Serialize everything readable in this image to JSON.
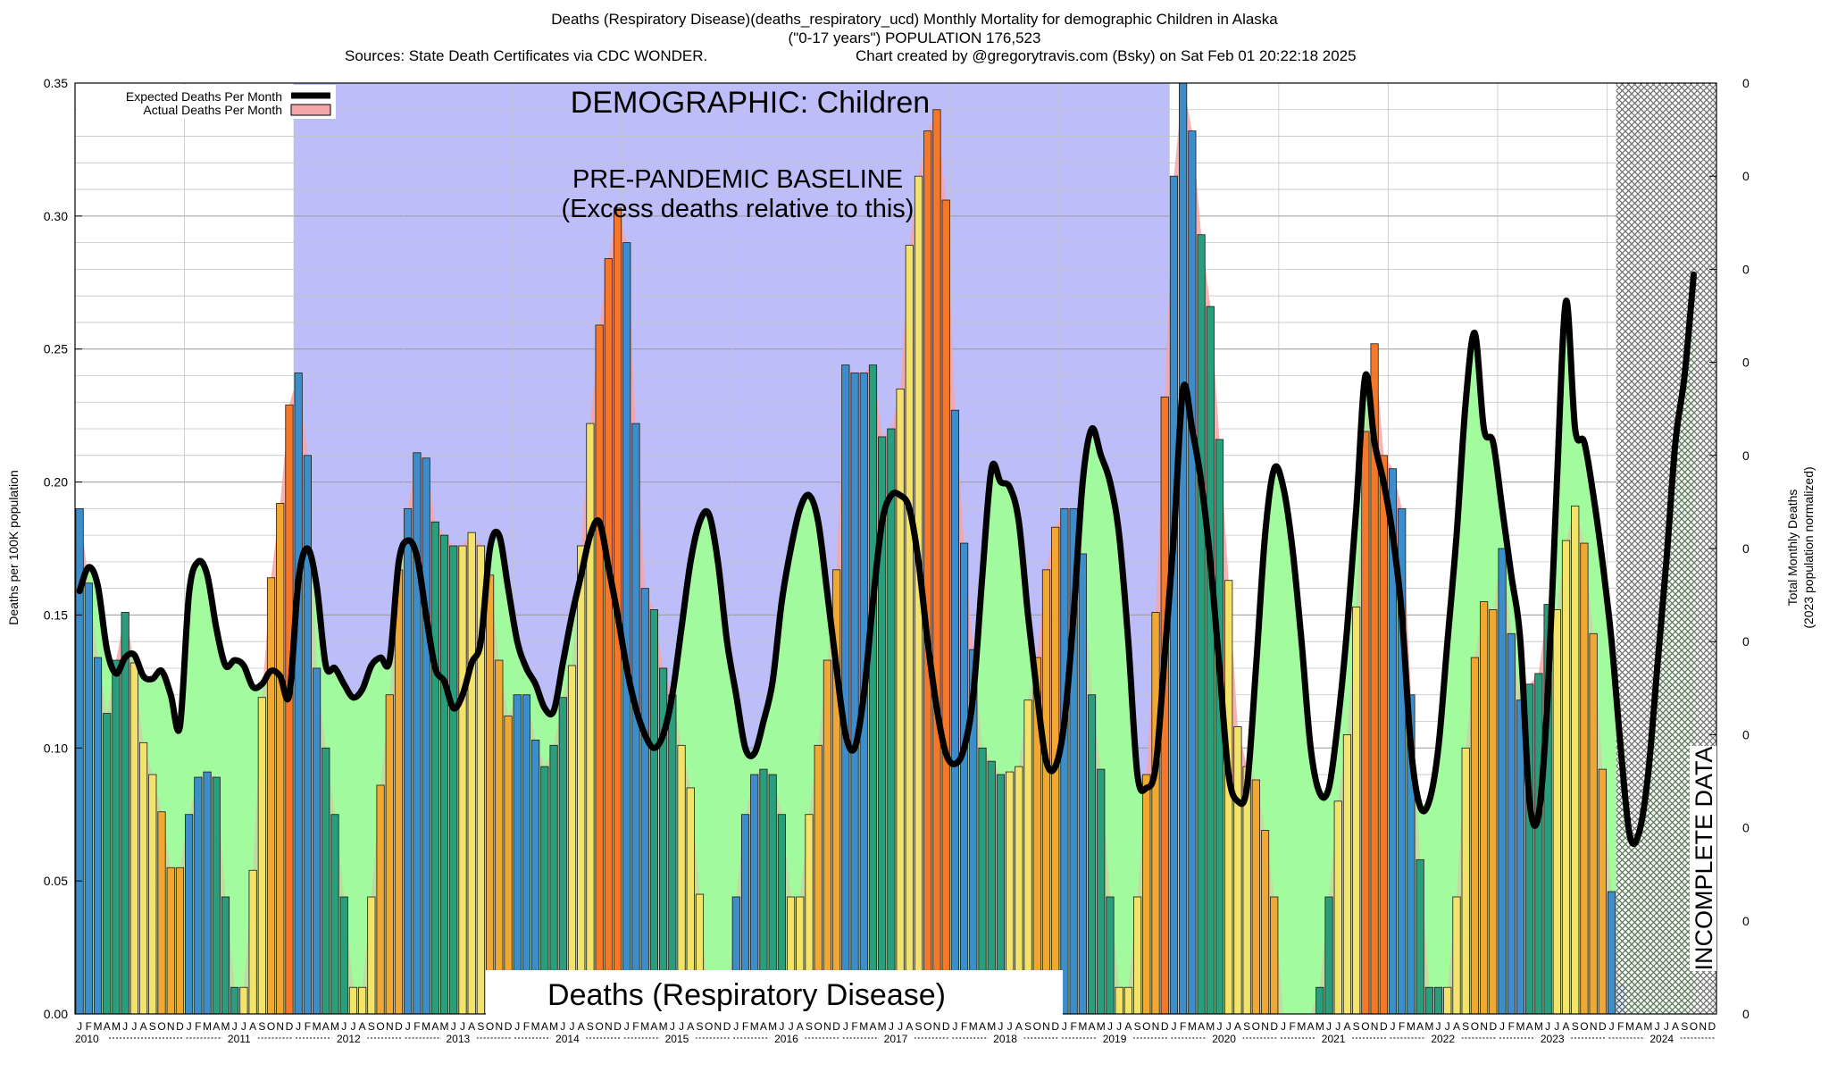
{
  "header": {
    "title_line1": "Deaths (Respiratory Disease)(deaths_respiratory_ucd) Monthly Mortality for demographic Children in Alaska",
    "title_line2": "(\"0-17 years\") POPULATION 176,523",
    "sources": "Sources: State Death Certificates via CDC WONDER.",
    "credit": "Chart created by @gregorytravis.com (Bsky) on Sat Feb 01 20:22:18 2025"
  },
  "colors": {
    "baseline_band": "#bdbdfa",
    "excess_fill": "#a0fc9c",
    "expected_line": "#000000",
    "actual_fill": "#f4a6a6",
    "bar_winter": "#3c8dc9",
    "bar_spring": "#2a9d7c",
    "bar_summer": "#f3e36b",
    "bar_fall": "#f0a832",
    "bar_peak": "#f5782a",
    "hatch": "#555555"
  },
  "chart_data": {
    "type": "bar",
    "title": "Deaths (Respiratory Disease)(deaths_respiratory_ucd) Monthly Mortality for demographic Children in Alaska",
    "ylabel_left": "Deaths per 100K population",
    "ylabel_right_line1": "Total Monthly Deaths",
    "ylabel_right_line2": "(2023 population normalized)",
    "ylim": [
      0,
      0.35
    ],
    "y_ticks": [
      "0.00",
      "0.05",
      "0.10",
      "0.15",
      "0.20",
      "0.25",
      "0.30",
      "0.35"
    ],
    "right_ticks": [
      "0",
      "0",
      "0",
      "0",
      "0",
      "0",
      "0",
      "0",
      "0",
      "0",
      "0"
    ],
    "month_letters": [
      "J",
      "F",
      "M",
      "A",
      "M",
      "J",
      "J",
      "A",
      "S",
      "O",
      "N",
      "D"
    ],
    "years": [
      "2010",
      "2011",
      "2012",
      "2013",
      "2014",
      "2015",
      "2016",
      "2017",
      "2018",
      "2019",
      "2020",
      "2021",
      "2022",
      "2023",
      "2024"
    ],
    "start": "2010-01",
    "grid": true,
    "legend": {
      "placement": "top-left",
      "entries": [
        "Expected Deaths Per Month",
        "Actual Deaths Per Month"
      ]
    },
    "annotations": {
      "demographic": "DEMOGRAPHIC: Children",
      "baseline_line1": "PRE-PANDEMIC BASELINE",
      "baseline_line2": "(Excess deaths relative to this)",
      "cause": "Deaths (Respiratory Disease)",
      "incomplete": "INCOMPLETE DATA"
    },
    "baseline_period": [
      "2012-01",
      "2019-12"
    ],
    "incomplete_period": [
      "2024-02",
      "2024-12"
    ],
    "series": [
      {
        "name": "Actual Deaths Per Month",
        "values": [
          0.19,
          0.162,
          0.134,
          0.113,
          0.133,
          0.151,
          0.132,
          0.102,
          0.09,
          0.076,
          0.055,
          0.055,
          0.075,
          0.089,
          0.091,
          0.089,
          0.044,
          0.01,
          0.01,
          0.054,
          0.119,
          0.164,
          0.192,
          0.229,
          0.241,
          0.21,
          0.13,
          0.1,
          0.075,
          0.044,
          0.01,
          0.01,
          0.044,
          0.086,
          0.12,
          0.167,
          0.19,
          0.211,
          0.209,
          0.185,
          0.18,
          0.176,
          0.176,
          0.181,
          0.176,
          0.165,
          0.133,
          0.112,
          0.12,
          0.12,
          0.103,
          0.093,
          0.101,
          0.119,
          0.131,
          0.176,
          0.222,
          0.259,
          0.284,
          0.303,
          0.29,
          0.222,
          0.16,
          0.152,
          0.13,
          0.12,
          0.101,
          0.085,
          0.045,
          0.0,
          0.0,
          0.0,
          0.044,
          0.075,
          0.09,
          0.092,
          0.09,
          0.075,
          0.044,
          0.044,
          0.075,
          0.101,
          0.133,
          0.167,
          0.244,
          0.241,
          0.241,
          0.244,
          0.217,
          0.22,
          0.235,
          0.289,
          0.315,
          0.332,
          0.34,
          0.306,
          0.227,
          0.177,
          0.137,
          0.1,
          0.095,
          0.09,
          0.091,
          0.093,
          0.118,
          0.134,
          0.167,
          0.183,
          0.19,
          0.19,
          0.173,
          0.12,
          0.092,
          0.044,
          0.01,
          0.01,
          0.044,
          0.09,
          0.151,
          0.232,
          0.315,
          0.35,
          0.332,
          0.293,
          0.266,
          0.216,
          0.163,
          0.108,
          0.093,
          0.088,
          0.069,
          0.044,
          0.0,
          0.0,
          0.0,
          0.0,
          0.01,
          0.044,
          0.08,
          0.105,
          0.153,
          0.219,
          0.252,
          0.21,
          0.205,
          0.19,
          0.12,
          0.058,
          0.01,
          0.01,
          0.01,
          0.044,
          0.1,
          0.134,
          0.155,
          0.152,
          0.175,
          0.143,
          0.118,
          0.124,
          0.128,
          0.154,
          0.152,
          0.178,
          0.191,
          0.177,
          0.143,
          0.092,
          0.046,
          0.011
        ]
      },
      {
        "name": "Expected Deaths Per Month",
        "values": [
          0.159,
          0.168,
          0.161,
          0.137,
          0.128,
          0.134,
          0.135,
          0.127,
          0.126,
          0.129,
          0.12,
          0.108,
          0.158,
          0.17,
          0.165,
          0.145,
          0.131,
          0.133,
          0.131,
          0.123,
          0.124,
          0.129,
          0.127,
          0.12,
          0.163,
          0.175,
          0.161,
          0.131,
          0.13,
          0.124,
          0.119,
          0.122,
          0.131,
          0.134,
          0.133,
          0.17,
          0.178,
          0.172,
          0.15,
          0.13,
          0.125,
          0.115,
          0.12,
          0.132,
          0.14,
          0.175,
          0.18,
          0.16,
          0.14,
          0.13,
          0.124,
          0.115,
          0.114,
          0.132,
          0.15,
          0.165,
          0.18,
          0.185,
          0.168,
          0.15,
          0.13,
          0.115,
          0.105,
          0.1,
          0.105,
          0.12,
          0.145,
          0.17,
          0.185,
          0.188,
          0.17,
          0.14,
          0.12,
          0.1,
          0.098,
          0.11,
          0.125,
          0.155,
          0.175,
          0.19,
          0.195,
          0.185,
          0.158,
          0.13,
          0.105,
          0.1,
          0.12,
          0.155,
          0.185,
          0.195,
          0.195,
          0.19,
          0.17,
          0.14,
          0.115,
          0.098,
          0.094,
          0.1,
          0.12,
          0.165,
          0.205,
          0.2,
          0.198,
          0.185,
          0.15,
          0.12,
          0.095,
          0.093,
          0.11,
          0.15,
          0.2,
          0.22,
          0.21,
          0.2,
          0.18,
          0.14,
          0.09,
          0.085,
          0.093,
          0.135,
          0.18,
          0.235,
          0.22,
          0.2,
          0.17,
          0.13,
          0.09,
          0.08,
          0.085,
          0.13,
          0.18,
          0.205,
          0.198,
          0.175,
          0.14,
          0.1,
          0.083,
          0.085,
          0.11,
          0.145,
          0.19,
          0.24,
          0.215,
          0.2,
          0.18,
          0.15,
          0.1,
          0.078,
          0.08,
          0.1,
          0.14,
          0.18,
          0.23,
          0.256,
          0.22,
          0.215,
          0.19,
          0.165,
          0.14,
          0.08,
          0.075,
          0.12,
          0.2,
          0.268,
          0.22,
          0.215,
          0.195,
          0.17,
          0.14,
          0.1,
          0.067,
          0.068,
          0.09,
          0.13,
          0.17,
          0.215,
          0.24,
          0.278
        ]
      }
    ]
  }
}
